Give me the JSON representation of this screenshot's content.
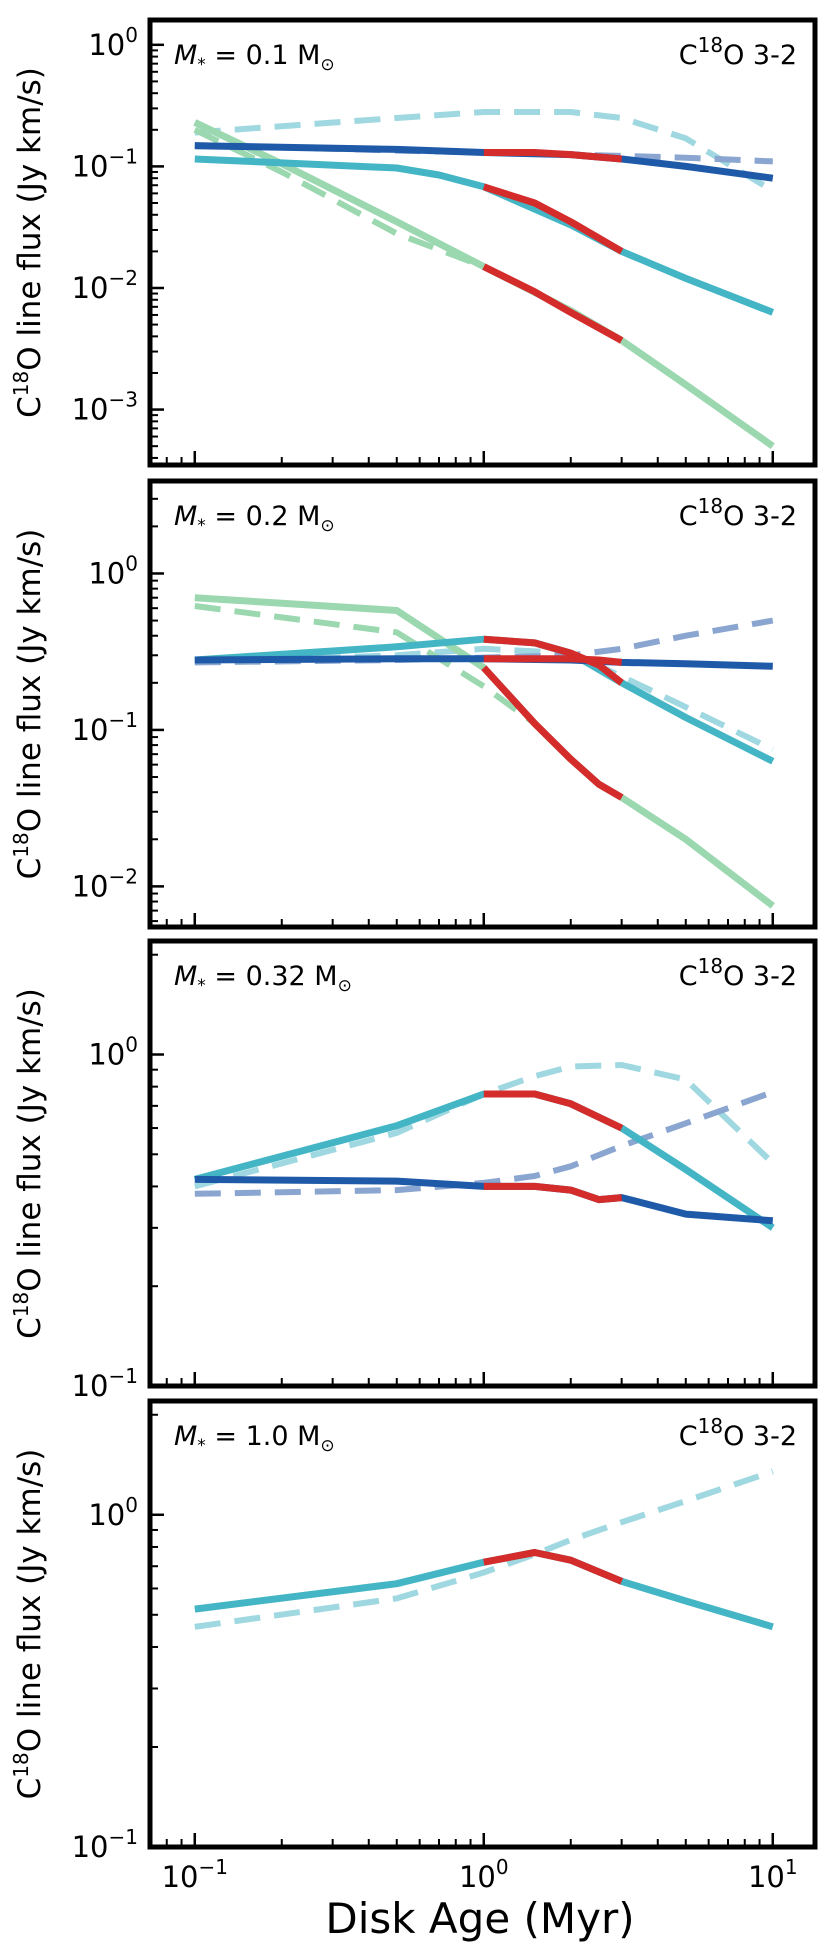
{
  "figure": {
    "xlabel": "Disk Age (Myr)",
    "x_ticks": [
      {
        "value": 0.1,
        "base": "10",
        "exp": "−1"
      },
      {
        "value": 1,
        "base": "10",
        "exp": "0"
      },
      {
        "value": 10,
        "base": "10",
        "exp": "1"
      }
    ]
  },
  "colors": {
    "light_green": "#9bd8b0",
    "teal": "#43b5c4",
    "dark_blue": "#1f5aa8",
    "red": "#d42b2b",
    "light_teal_dashed": "#9fd8e0",
    "slate_blue_dashed": "#8aa6d0"
  },
  "chart_data": [
    {
      "type": "line",
      "annotation": {
        "prefix": "M",
        "sub": "*",
        "mid": " = ",
        "value": "0.1",
        "unit": " M",
        "unit_sub": "⊙"
      },
      "line_label": {
        "pre": "C",
        "sup": "18",
        "post": "O 3-2"
      },
      "ylabel": {
        "pre": "C",
        "sup": "18",
        "post": "O line flux (Jy km/s)"
      },
      "xlim": [
        0.07,
        14
      ],
      "ylim": [
        0.00035,
        1.6
      ],
      "y_ticks": [
        {
          "value": 1,
          "base": "10",
          "exp": "0"
        },
        {
          "value": 0.1,
          "base": "10",
          "exp": "−1"
        },
        {
          "value": 0.01,
          "base": "10",
          "exp": "−2"
        },
        {
          "value": 0.001,
          "base": "10",
          "exp": "−3"
        }
      ],
      "series": [
        {
          "name": "light-teal-dashed",
          "color_key": "light_teal_dashed",
          "dashed": true,
          "x": [
            0.1,
            0.5,
            1,
            2,
            3,
            5,
            10
          ],
          "y": [
            0.19,
            0.25,
            0.28,
            0.28,
            0.25,
            0.17,
            0.063
          ]
        },
        {
          "name": "slate-blue-dashed",
          "color_key": "slate_blue_dashed",
          "dashed": true,
          "x": [
            0.1,
            0.5,
            1,
            2,
            3,
            5,
            10
          ],
          "y": [
            0.15,
            0.135,
            0.13,
            0.125,
            0.122,
            0.118,
            0.11
          ]
        },
        {
          "name": "light-green-dashed",
          "color_key": "light_green",
          "dashed": true,
          "x": [
            0.1,
            0.2,
            0.5,
            1
          ],
          "y": [
            0.2,
            0.09,
            0.028,
            0.015
          ]
        },
        {
          "name": "light-green",
          "color_key": "light_green",
          "dashed": false,
          "x": [
            0.1,
            0.2,
            0.5,
            1,
            2,
            3,
            5,
            10
          ],
          "y": [
            0.23,
            0.105,
            0.035,
            0.015,
            0.0065,
            0.0037,
            0.0016,
            0.0005
          ]
        },
        {
          "name": "teal",
          "color_key": "teal",
          "dashed": false,
          "x": [
            0.1,
            0.5,
            0.7,
            1,
            2,
            3,
            5,
            10
          ],
          "y": [
            0.115,
            0.097,
            0.085,
            0.068,
            0.033,
            0.02,
            0.012,
            0.0063
          ]
        },
        {
          "name": "dark-blue",
          "color_key": "dark_blue",
          "dashed": false,
          "x": [
            0.1,
            0.5,
            1,
            2,
            3,
            5,
            10
          ],
          "y": [
            0.148,
            0.138,
            0.13,
            0.125,
            0.115,
            0.1,
            0.08
          ]
        },
        {
          "name": "red-a",
          "color_key": "red",
          "dashed": false,
          "x": [
            1,
            1.5,
            2,
            3
          ],
          "y": [
            0.13,
            0.13,
            0.125,
            0.115
          ]
        },
        {
          "name": "red-b",
          "color_key": "red",
          "dashed": false,
          "x": [
            1,
            1.5,
            2,
            3
          ],
          "y": [
            0.068,
            0.05,
            0.035,
            0.02
          ]
        },
        {
          "name": "red-c",
          "color_key": "red",
          "dashed": false,
          "x": [
            1,
            1.5,
            2,
            3
          ],
          "y": [
            0.015,
            0.0093,
            0.0063,
            0.0037
          ]
        }
      ]
    },
    {
      "type": "line",
      "annotation": {
        "prefix": "M",
        "sub": "*",
        "mid": " = ",
        "value": "0.2",
        "unit": " M",
        "unit_sub": "⊙"
      },
      "line_label": {
        "pre": "C",
        "sup": "18",
        "post": "O 3-2"
      },
      "ylabel": {
        "pre": "C",
        "sup": "18",
        "post": "O line flux (Jy km/s)"
      },
      "xlim": [
        0.07,
        14
      ],
      "ylim": [
        0.0055,
        3.9
      ],
      "y_ticks": [
        {
          "value": 1,
          "base": "10",
          "exp": "0"
        },
        {
          "value": 0.1,
          "base": "10",
          "exp": "−1"
        },
        {
          "value": 0.01,
          "base": "10",
          "exp": "−2"
        }
      ],
      "series": [
        {
          "name": "light-teal-dashed",
          "color_key": "light_teal_dashed",
          "dashed": true,
          "x": [
            0.1,
            0.5,
            1,
            2,
            3,
            5,
            10
          ],
          "y": [
            0.27,
            0.3,
            0.33,
            0.31,
            0.22,
            0.14,
            0.075
          ]
        },
        {
          "name": "slate-blue-dashed",
          "color_key": "slate_blue_dashed",
          "dashed": true,
          "x": [
            0.1,
            0.5,
            1,
            2,
            3,
            5,
            10
          ],
          "y": [
            0.27,
            0.28,
            0.29,
            0.3,
            0.33,
            0.4,
            0.5
          ]
        },
        {
          "name": "light-green-dashed",
          "color_key": "light_green",
          "dashed": true,
          "x": [
            0.1,
            0.5,
            1,
            1.5
          ],
          "y": [
            0.62,
            0.42,
            0.19,
            0.11
          ]
        },
        {
          "name": "light-green",
          "color_key": "light_green",
          "dashed": false,
          "x": [
            0.1,
            0.5,
            1,
            1.5,
            2,
            2.5,
            3,
            5,
            10
          ],
          "y": [
            0.7,
            0.58,
            0.25,
            0.11,
            0.065,
            0.045,
            0.037,
            0.02,
            0.0075
          ]
        },
        {
          "name": "teal",
          "color_key": "teal",
          "dashed": false,
          "x": [
            0.1,
            0.5,
            1,
            1.5,
            2,
            3,
            5,
            10
          ],
          "y": [
            0.28,
            0.34,
            0.38,
            0.36,
            0.31,
            0.2,
            0.12,
            0.063
          ]
        },
        {
          "name": "dark-blue",
          "color_key": "dark_blue",
          "dashed": false,
          "x": [
            0.1,
            0.5,
            1,
            2,
            3,
            5,
            10
          ],
          "y": [
            0.28,
            0.285,
            0.285,
            0.28,
            0.27,
            0.265,
            0.255
          ]
        },
        {
          "name": "red-a",
          "color_key": "red",
          "dashed": false,
          "x": [
            1,
            1.5,
            2,
            2.5,
            3
          ],
          "y": [
            0.38,
            0.36,
            0.31,
            0.26,
            0.2
          ]
        },
        {
          "name": "red-b",
          "color_key": "red",
          "dashed": false,
          "x": [
            1,
            2,
            2.5,
            3
          ],
          "y": [
            0.285,
            0.285,
            0.28,
            0.27
          ]
        },
        {
          "name": "red-c",
          "color_key": "red",
          "dashed": false,
          "x": [
            1,
            1.5,
            2,
            2.5,
            3
          ],
          "y": [
            0.25,
            0.11,
            0.065,
            0.045,
            0.037
          ]
        }
      ]
    },
    {
      "type": "line",
      "annotation": {
        "prefix": "M",
        "sub": "*",
        "mid": " = ",
        "value": "0.32",
        "unit": " M",
        "unit_sub": "⊙"
      },
      "line_label": {
        "pre": "C",
        "sup": "18",
        "post": "O 3-2"
      },
      "ylabel": {
        "pre": "C",
        "sup": "18",
        "post": "O line flux (Jy km/s)"
      },
      "xlim": [
        0.07,
        14
      ],
      "ylim": [
        0.1,
        2.2
      ],
      "y_ticks": [
        {
          "value": 1,
          "base": "10",
          "exp": "0"
        },
        {
          "value": 0.1,
          "base": "10",
          "exp": "−1"
        }
      ],
      "series": [
        {
          "name": "light-teal-dashed",
          "color_key": "light_teal_dashed",
          "dashed": true,
          "x": [
            0.1,
            0.5,
            1,
            1.5,
            2,
            3,
            5,
            10
          ],
          "y": [
            0.4,
            0.58,
            0.76,
            0.86,
            0.92,
            0.93,
            0.84,
            0.47
          ]
        },
        {
          "name": "slate-blue-dashed",
          "color_key": "slate_blue_dashed",
          "dashed": true,
          "x": [
            0.1,
            0.5,
            1,
            1.5,
            2,
            3,
            5,
            10
          ],
          "y": [
            0.38,
            0.39,
            0.41,
            0.43,
            0.46,
            0.53,
            0.62,
            0.77
          ]
        },
        {
          "name": "teal",
          "color_key": "teal",
          "dashed": false,
          "x": [
            0.1,
            0.5,
            1,
            1.5,
            2,
            3,
            5,
            10
          ],
          "y": [
            0.42,
            0.61,
            0.76,
            0.76,
            0.71,
            0.6,
            0.45,
            0.3
          ]
        },
        {
          "name": "dark-blue",
          "color_key": "dark_blue",
          "dashed": false,
          "x": [
            0.1,
            0.5,
            1,
            1.5,
            2,
            2.5,
            3,
            5,
            10
          ],
          "y": [
            0.42,
            0.415,
            0.4,
            0.4,
            0.39,
            0.365,
            0.37,
            0.33,
            0.315
          ]
        },
        {
          "name": "red-a",
          "color_key": "red",
          "dashed": false,
          "x": [
            1,
            1.5,
            2,
            3
          ],
          "y": [
            0.76,
            0.76,
            0.71,
            0.6
          ]
        },
        {
          "name": "red-b",
          "color_key": "red",
          "dashed": false,
          "x": [
            1,
            1.5,
            2,
            2.5,
            3
          ],
          "y": [
            0.4,
            0.4,
            0.39,
            0.365,
            0.37
          ]
        }
      ]
    },
    {
      "type": "line",
      "annotation": {
        "prefix": "M",
        "sub": "*",
        "mid": " = ",
        "value": "1.0",
        "unit": " M",
        "unit_sub": "⊙"
      },
      "line_label": {
        "pre": "C",
        "sup": "18",
        "post": "O 3-2"
      },
      "ylabel": {
        "pre": "C",
        "sup": "18",
        "post": "O line flux (Jy km/s)"
      },
      "xlim": [
        0.07,
        14
      ],
      "ylim": [
        0.1,
        2.2
      ],
      "y_ticks": [
        {
          "value": 1,
          "base": "10",
          "exp": "0"
        },
        {
          "value": 0.1,
          "base": "10",
          "exp": "−1"
        }
      ],
      "series": [
        {
          "name": "light-teal-dashed",
          "color_key": "light_teal_dashed",
          "dashed": true,
          "x": [
            0.1,
            0.5,
            1,
            1.5,
            2,
            3,
            5,
            10
          ],
          "y": [
            0.46,
            0.56,
            0.67,
            0.76,
            0.84,
            0.95,
            1.1,
            1.35
          ]
        },
        {
          "name": "teal",
          "color_key": "teal",
          "dashed": false,
          "x": [
            0.1,
            0.5,
            1,
            1.5,
            2,
            3,
            5,
            10
          ],
          "y": [
            0.52,
            0.62,
            0.72,
            0.77,
            0.73,
            0.63,
            0.55,
            0.46
          ]
        },
        {
          "name": "red-a",
          "color_key": "red",
          "dashed": false,
          "x": [
            1,
            1.5,
            2,
            3
          ],
          "y": [
            0.72,
            0.77,
            0.73,
            0.63
          ]
        }
      ]
    }
  ]
}
